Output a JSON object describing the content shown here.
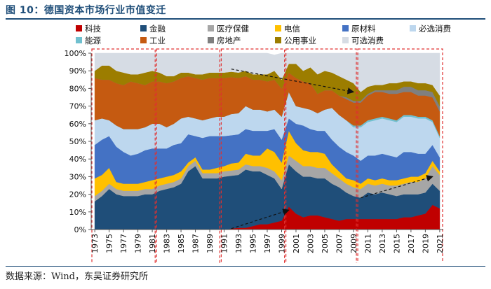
{
  "header": {
    "title": "图 10：德国资本市场行业市值变迁"
  },
  "footer": {
    "source": "数据来源：Wind，东吴证券研究所"
  },
  "chart_data": {
    "type": "area",
    "stacked": true,
    "percent": true,
    "x": [
      1973,
      1974,
      1975,
      1976,
      1977,
      1978,
      1979,
      1980,
      1981,
      1982,
      1983,
      1984,
      1985,
      1986,
      1987,
      1988,
      1989,
      1990,
      1991,
      1992,
      1993,
      1994,
      1995,
      1996,
      1997,
      1998,
      1999,
      2000,
      2001,
      2002,
      2003,
      2004,
      2005,
      2006,
      2007,
      2008,
      2009,
      2010,
      2011,
      2012,
      2013,
      2014,
      2015,
      2016,
      2017,
      2018,
      2019,
      2020,
      2021
    ],
    "x_tick_labels": [
      "1973",
      "1975",
      "1977",
      "1979",
      "1981",
      "1983",
      "1985",
      "1987",
      "1989",
      "1991",
      "1993",
      "1995",
      "1997",
      "1999",
      "2001",
      "2003",
      "2005",
      "2007",
      "2009",
      "2011",
      "2013",
      "2015",
      "2017",
      "2019",
      "2021"
    ],
    "ylim": [
      0,
      100
    ],
    "y_tick_labels": [
      "0%",
      "10%",
      "20%",
      "30%",
      "40%",
      "50%",
      "60%",
      "70%",
      "80%",
      "90%",
      "100%"
    ],
    "grid": false,
    "legend": "top",
    "series": [
      {
        "name": "科技",
        "color": "#c00000",
        "values": [
          0,
          0,
          0,
          0,
          0,
          0,
          0,
          0,
          0,
          0,
          0,
          0,
          0,
          0,
          0,
          0,
          0,
          0,
          0,
          0.5,
          1,
          1,
          2,
          3,
          3,
          4,
          5,
          13,
          9,
          7,
          8,
          8,
          7,
          6,
          5,
          6,
          6,
          6,
          6,
          6,
          6,
          6,
          6,
          7,
          7,
          8,
          9,
          14,
          12
        ]
      },
      {
        "name": "金融",
        "color": "#1f4e79",
        "values": [
          16,
          19,
          23,
          20,
          19,
          19,
          19,
          20,
          20,
          22,
          23,
          24,
          26,
          33,
          36,
          29,
          29,
          29,
          30,
          30,
          30,
          33,
          31,
          30,
          28,
          25,
          18,
          24,
          24,
          23,
          22,
          21,
          22,
          20,
          19,
          15,
          13,
          12,
          15,
          14,
          15,
          14,
          13,
          13,
          13,
          12,
          12,
          12,
          10
        ]
      },
      {
        "name": "医疗保健",
        "color": "#a6a6a6",
        "values": [
          3,
          3,
          3,
          3,
          3,
          3,
          3,
          3,
          3,
          3,
          3,
          3,
          3,
          3,
          3,
          3,
          3,
          3,
          3,
          3,
          3,
          3,
          3,
          3,
          4,
          4,
          5,
          5,
          6,
          6,
          6,
          6,
          6,
          6,
          5,
          5,
          5,
          5,
          5,
          5,
          5,
          5,
          6,
          6,
          7,
          7,
          8,
          10,
          9
        ]
      },
      {
        "name": "电信",
        "color": "#ffc000",
        "values": [
          10,
          9,
          9,
          4,
          4,
          4,
          4,
          4,
          5,
          4,
          4,
          4,
          4,
          2,
          2,
          2,
          2,
          3,
          3,
          4,
          4,
          6,
          6,
          6,
          11,
          11,
          10,
          14,
          10,
          9,
          8,
          9,
          8,
          5,
          4,
          3,
          4,
          3,
          3,
          3,
          3,
          3,
          3,
          3,
          3,
          3,
          3,
          3,
          2
        ]
      },
      {
        "name": "原材料",
        "color": "#4472c4",
        "values": [
          19,
          20,
          18,
          20,
          18,
          16,
          17,
          18,
          18,
          17,
          16,
          17,
          16,
          16,
          12,
          18,
          19,
          18,
          17,
          16,
          16,
          14,
          14,
          14,
          10,
          13,
          13,
          7,
          11,
          14,
          13,
          12,
          13,
          14,
          14,
          15,
          14,
          13,
          13,
          14,
          14,
          14,
          13,
          15,
          14,
          13,
          11,
          9,
          8
        ]
      },
      {
        "name": "必选消费",
        "color": "#bdd7ee",
        "values": [
          14,
          12,
          9,
          12,
          13,
          15,
          14,
          13,
          14,
          14,
          12,
          12,
          14,
          10,
          10,
          10,
          10,
          11,
          11,
          12,
          12,
          13,
          12,
          12,
          11,
          11,
          13,
          15,
          10,
          10,
          11,
          10,
          12,
          18,
          18,
          18,
          16,
          19,
          19,
          20,
          20,
          20,
          20,
          20,
          20,
          20,
          20,
          13,
          11
        ]
      },
      {
        "name": "能源",
        "color": "#70c0cf",
        "values": [
          0,
          0,
          0,
          0,
          0,
          0,
          0,
          0,
          0,
          0,
          0,
          0,
          0,
          0,
          0,
          0,
          0,
          0,
          0,
          0,
          0,
          0,
          0,
          0,
          0,
          0,
          0,
          0,
          0,
          0,
          0,
          0,
          0,
          0,
          0,
          0,
          1,
          1,
          1,
          1,
          1,
          1,
          1,
          1,
          1,
          1,
          1,
          1,
          1
        ]
      },
      {
        "name": "工业",
        "color": "#c55a11",
        "values": [
          24,
          22,
          23,
          24,
          25,
          27,
          26,
          24,
          24,
          24,
          25,
          24,
          23,
          23,
          23,
          23,
          23,
          22,
          22,
          21,
          20,
          17,
          17,
          17,
          17,
          17,
          16,
          11,
          16,
          15,
          15,
          11,
          11,
          10,
          11,
          12,
          13,
          13,
          14,
          15,
          14,
          14,
          15,
          13,
          13,
          12,
          12,
          13,
          14
        ]
      },
      {
        "name": "房地产",
        "color": "#7f7f7f",
        "values": [
          0,
          0,
          0,
          0,
          0,
          0,
          0,
          0,
          0,
          0,
          0,
          0,
          0,
          0,
          0,
          0,
          0,
          0,
          0,
          0,
          0,
          0,
          0,
          0,
          0,
          0,
          0,
          0,
          0,
          0,
          0,
          0,
          0,
          0,
          0,
          1,
          1,
          1,
          1,
          1,
          1,
          2,
          2,
          3,
          3,
          3,
          3,
          3,
          3
        ]
      },
      {
        "name": "公用事业",
        "color": "#9c7d00",
        "values": [
          4,
          8,
          8,
          7,
          7,
          4,
          5,
          7,
          6,
          5,
          4,
          3,
          3,
          2,
          2,
          3,
          3,
          3,
          3,
          3,
          3,
          3,
          3,
          3,
          4,
          5,
          5,
          5,
          8,
          6,
          9,
          11,
          11,
          10,
          11,
          10,
          10,
          5,
          4,
          3,
          3,
          4,
          4,
          3,
          3,
          4,
          4,
          4,
          6
        ]
      },
      {
        "name": "可选消费",
        "color": "#d6dce4",
        "values": [
          10,
          7,
          7,
          10,
          11,
          12,
          12,
          11,
          10,
          11,
          13,
          13,
          11,
          11,
          12,
          12,
          11,
          11,
          11,
          10.5,
          11,
          10,
          12,
          12,
          12,
          9,
          15,
          6,
          6,
          10,
          8,
          12,
          10,
          11,
          13,
          15,
          17,
          22,
          19,
          18,
          18,
          17,
          17,
          16,
          16,
          17,
          17,
          18,
          24
        ]
      }
    ]
  }
}
